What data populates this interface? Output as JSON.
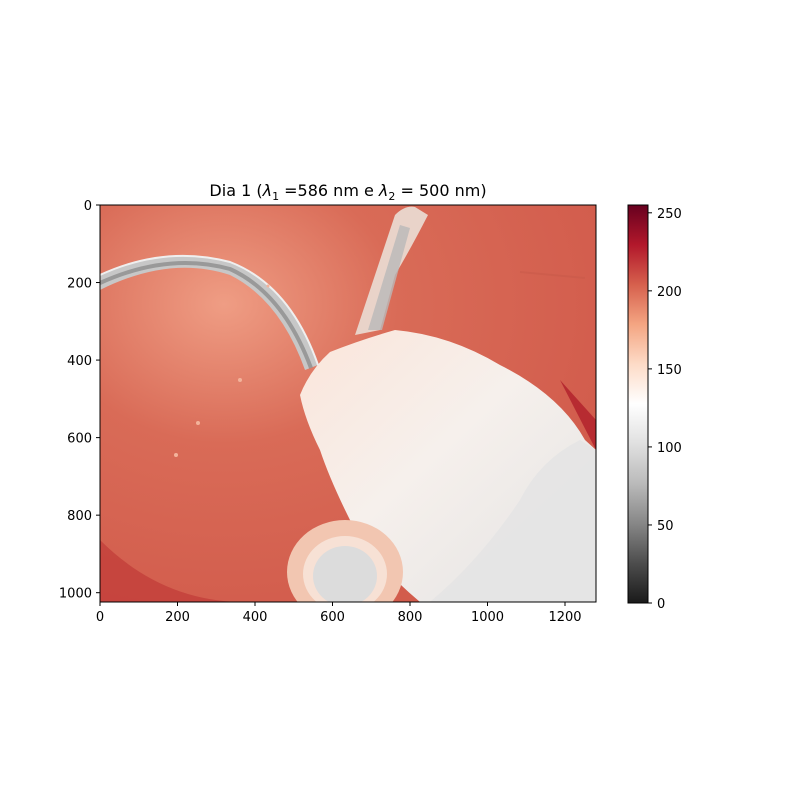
{
  "chart_data": {
    "type": "heatmap",
    "title": {
      "prefix": "Dia 1 (",
      "lambda": "λ",
      "sub1": "1",
      "mid": " =586 nm e ",
      "sub2": "2",
      "suffix": " = 500 nm)"
    },
    "xlabel": "",
    "ylabel": "",
    "image_width": 1280,
    "image_height": 1024,
    "xlim": [
      0,
      1280
    ],
    "ylim": [
      1024,
      0
    ],
    "x_ticks": [
      0,
      200,
      400,
      600,
      800,
      1000,
      1200
    ],
    "y_ticks": [
      0,
      200,
      400,
      600,
      800,
      1000
    ],
    "colormap": "RdGy_r",
    "colorbar": {
      "range": [
        0,
        255
      ],
      "ticks": [
        0,
        50,
        100,
        150,
        200,
        250
      ],
      "stops": [
        "#1a1a1a",
        "#4d4d4d",
        "#878787",
        "#bababa",
        "#e0e0e0",
        "#ffffff",
        "#fddbc7",
        "#f4a582",
        "#d6604d",
        "#b2182b",
        "#67001f"
      ]
    },
    "base_color": "#d5604d",
    "regions": [
      {
        "name": "tube-left",
        "color": "#c9c9c9"
      },
      {
        "name": "tube-upper",
        "color": "#cfcfcf"
      },
      {
        "name": "tissue",
        "color": "#f9ded2"
      },
      {
        "name": "tissue-gray",
        "color": "#ebebeb"
      },
      {
        "name": "ring",
        "color": "#f1c9b6"
      },
      {
        "name": "disk",
        "color": "#dddddd"
      }
    ]
  }
}
